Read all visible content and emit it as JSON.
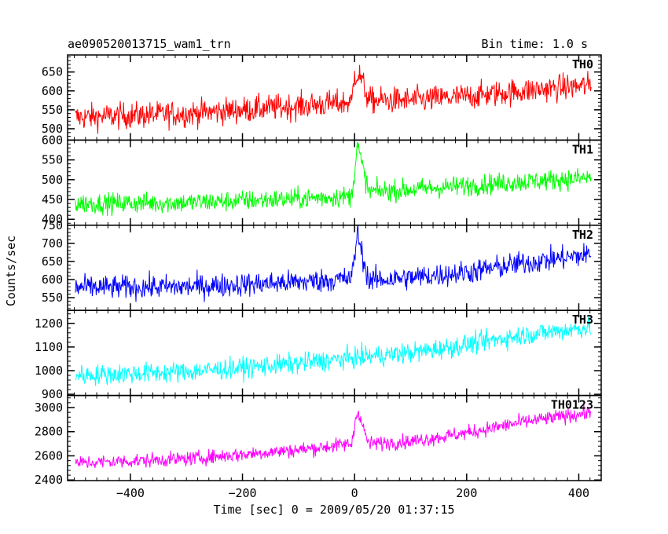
{
  "header": {
    "title": "ae090520013715_wam1_trn",
    "bin_time": "Bin time: 1.0 s"
  },
  "chart_data": {
    "type": "line",
    "title": "ae090520013715_wam1_trn",
    "xlabel": "Time [sec] 0 = 2009/05/20 01:37:15",
    "ylabel": "Counts/sec",
    "xlim": [
      -512,
      440
    ],
    "xticks_major": [
      -400,
      -200,
      0,
      200,
      400
    ],
    "xtick_labels": [
      "−400",
      "−200",
      "0",
      "200",
      "400"
    ],
    "x_start": -498,
    "x_end": 422,
    "panels": [
      {
        "name": "TH0",
        "color": "#ff0000",
        "ylim": [
          470,
          695
        ],
        "yticks": [
          500,
          550,
          600,
          650
        ],
        "ytick_labels": [
          "500",
          "550",
          "600",
          "650"
        ],
        "trend": [
          [
            -498,
            530
          ],
          [
            -300,
            540
          ],
          [
            -100,
            560
          ],
          [
            -5,
            570
          ],
          [
            0,
            645
          ],
          [
            10,
            640
          ],
          [
            25,
            575
          ],
          [
            100,
            575
          ],
          [
            200,
            585
          ],
          [
            300,
            600
          ],
          [
            422,
            615
          ]
        ],
        "noise": 32
      },
      {
        "name": "TH1",
        "color": "#00ff00",
        "ylim": [
          385,
          600
        ],
        "yticks": [
          400,
          450,
          500,
          550,
          600
        ],
        "ytick_labels": [
          "400",
          "450",
          "500",
          "550",
          "600"
        ],
        "trend": [
          [
            -498,
            440
          ],
          [
            -300,
            442
          ],
          [
            -100,
            452
          ],
          [
            -5,
            458
          ],
          [
            5,
            590
          ],
          [
            12,
            545
          ],
          [
            25,
            470
          ],
          [
            100,
            475
          ],
          [
            200,
            485
          ],
          [
            300,
            495
          ],
          [
            422,
            505
          ]
        ],
        "noise": 24
      },
      {
        "name": "TH2",
        "color": "#0000ff",
        "ylim": [
          515,
          750
        ],
        "yticks": [
          550,
          600,
          650,
          700,
          750
        ],
        "ytick_labels": [
          "550",
          "600",
          "650",
          "700",
          "750"
        ],
        "trend": [
          [
            -498,
            578
          ],
          [
            -300,
            580
          ],
          [
            -100,
            593
          ],
          [
            -5,
            603
          ],
          [
            5,
            730
          ],
          [
            12,
            680
          ],
          [
            25,
            598
          ],
          [
            100,
            605
          ],
          [
            200,
            620
          ],
          [
            300,
            645
          ],
          [
            422,
            670
          ]
        ],
        "noise": 30
      },
      {
        "name": "TH3",
        "color": "#00ffff",
        "ylim": [
          895,
          1255
        ],
        "yticks": [
          900,
          1000,
          1100,
          1200
        ],
        "ytick_labels": [
          "900",
          "1000",
          "1100",
          "1200"
        ],
        "trend": [
          [
            -498,
            980
          ],
          [
            -300,
            995
          ],
          [
            -100,
            1030
          ],
          [
            0,
            1055
          ],
          [
            100,
            1075
          ],
          [
            200,
            1110
          ],
          [
            300,
            1150
          ],
          [
            422,
            1185
          ]
        ],
        "noise": 40
      },
      {
        "name": "TH0123",
        "color": "#ff00ff",
        "ylim": [
          2395,
          3100
        ],
        "yticks": [
          2400,
          2600,
          2800,
          3000
        ],
        "ytick_labels": [
          "2400",
          "2600",
          "2800",
          "3000"
        ],
        "trend": [
          [
            -498,
            2540
          ],
          [
            -300,
            2575
          ],
          [
            -100,
            2650
          ],
          [
            -5,
            2700
          ],
          [
            5,
            2990
          ],
          [
            12,
            2880
          ],
          [
            25,
            2700
          ],
          [
            100,
            2720
          ],
          [
            200,
            2790
          ],
          [
            300,
            2880
          ],
          [
            422,
            2960
          ]
        ],
        "noise": 55
      }
    ]
  }
}
